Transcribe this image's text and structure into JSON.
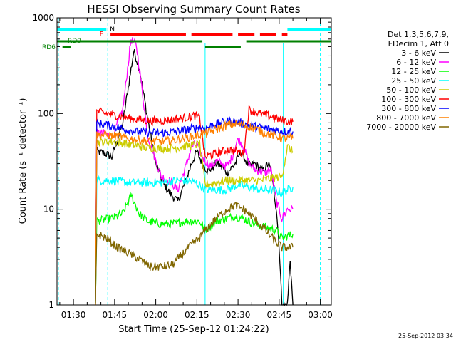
{
  "chart_data": {
    "type": "line",
    "title": "HESSI Observing Summary Count Rates",
    "xlabel": "Start Time (25-Sep-12 01:24:22)",
    "ylabel": "Count Rate (s⁻¹ detector⁻¹)",
    "ylog": true,
    "ylim": [
      1,
      1000
    ],
    "xlim_minutes": [
      0,
      100
    ],
    "x_ticks": [
      {
        "t": 6,
        "label": "01:30"
      },
      {
        "t": 21,
        "label": "01:45"
      },
      {
        "t": 36,
        "label": "02:00"
      },
      {
        "t": 51,
        "label": "02:15"
      },
      {
        "t": 66,
        "label": "02:30"
      },
      {
        "t": 81,
        "label": "02:45"
      },
      {
        "t": 96,
        "label": "03:00"
      }
    ],
    "y_ticks": [
      {
        "v": 1,
        "label": "1"
      },
      {
        "v": 10,
        "label": "10"
      },
      {
        "v": 100,
        "label": "100"
      },
      {
        "v": 1000,
        "label": "1000"
      }
    ],
    "legend_header": [
      "Det 1,3,5,6,7,9,",
      "FDecim 1, Att 0"
    ],
    "legend_position": "right",
    "date_stamp": "25-Sep-2012 03:34",
    "night_intervals": [
      [
        0,
        18
      ],
      [
        84,
        100
      ]
    ],
    "night_label": "N",
    "flare_segments": [
      [
        19.5,
        47
      ],
      [
        49,
        64
      ],
      [
        66,
        72
      ],
      [
        74,
        80
      ],
      [
        82,
        84
      ]
    ],
    "flare_label": "F",
    "rd0_segments": [
      [
        0,
        53
      ],
      [
        69,
        100
      ]
    ],
    "rd0_label": "RD0",
    "rd6_segments": [
      [
        2,
        5
      ],
      [
        54,
        67
      ]
    ],
    "rd6_label": "RD6",
    "dashed_verticals": [
      0.5,
      18.5,
      96
    ],
    "solid_verticals": [
      54,
      82.5
    ],
    "series": [
      {
        "name": "3 - 6 keV",
        "color": "#000000",
        "points": [
          [
            14,
            1
          ],
          [
            14.5,
            40
          ],
          [
            18,
            38
          ],
          [
            20,
            35
          ],
          [
            24,
            80
          ],
          [
            28,
            450
          ],
          [
            30,
            300
          ],
          [
            33,
            90
          ],
          [
            36,
            30
          ],
          [
            39,
            18
          ],
          [
            41,
            15
          ],
          [
            44,
            12
          ],
          [
            47,
            20
          ],
          [
            49,
            30
          ],
          [
            51,
            40
          ],
          [
            53,
            30
          ],
          [
            55,
            25
          ],
          [
            58,
            30
          ],
          [
            60,
            28
          ],
          [
            62,
            24
          ],
          [
            65,
            30
          ],
          [
            67,
            40
          ],
          [
            70,
            28
          ],
          [
            72,
            30
          ],
          [
            75,
            25
          ],
          [
            77,
            30
          ],
          [
            78,
            25
          ],
          [
            80,
            10
          ],
          [
            81,
            4
          ],
          [
            82,
            1
          ],
          [
            84,
            1
          ],
          [
            85,
            3
          ],
          [
            86,
            1
          ]
        ]
      },
      {
        "name": "6 - 12 keV",
        "color": "#ff00ff",
        "points": [
          [
            14,
            2
          ],
          [
            14.5,
            62
          ],
          [
            18,
            62
          ],
          [
            20,
            55
          ],
          [
            24,
            110
          ],
          [
            27,
            600
          ],
          [
            29,
            500
          ],
          [
            31,
            180
          ],
          [
            33,
            60
          ],
          [
            36,
            32
          ],
          [
            38,
            22
          ],
          [
            41,
            20
          ],
          [
            44,
            16
          ],
          [
            47,
            28
          ],
          [
            49,
            45
          ],
          [
            51,
            48
          ],
          [
            52,
            40
          ],
          [
            54,
            32
          ],
          [
            56,
            28
          ],
          [
            58,
            32
          ],
          [
            60,
            30
          ],
          [
            62,
            28
          ],
          [
            64,
            36
          ],
          [
            66,
            55
          ],
          [
            68,
            45
          ],
          [
            70,
            30
          ],
          [
            72,
            26
          ],
          [
            74,
            25
          ],
          [
            76,
            24
          ],
          [
            78,
            26
          ],
          [
            80,
            12
          ],
          [
            82,
            8
          ],
          [
            84,
            10
          ],
          [
            86,
            10
          ]
        ]
      },
      {
        "name": "12 - 25 keV",
        "color": "#00ff00",
        "points": [
          [
            14,
            1
          ],
          [
            14.5,
            7.5
          ],
          [
            20,
            8
          ],
          [
            24,
            9
          ],
          [
            27,
            14
          ],
          [
            30,
            9
          ],
          [
            33,
            7.5
          ],
          [
            38,
            7
          ],
          [
            42,
            7
          ],
          [
            47,
            7.5
          ],
          [
            52,
            7.5
          ],
          [
            54,
            6
          ],
          [
            58,
            7.5
          ],
          [
            62,
            8
          ],
          [
            65,
            8.5
          ],
          [
            68,
            8
          ],
          [
            72,
            7
          ],
          [
            76,
            6.5
          ],
          [
            80,
            6
          ],
          [
            82,
            5
          ],
          [
            86,
            5.5
          ]
        ]
      },
      {
        "name": "25 - 50 keV",
        "color": "#00ffff",
        "points": [
          [
            14,
            1
          ],
          [
            14.5,
            20
          ],
          [
            20,
            20
          ],
          [
            26,
            19
          ],
          [
            32,
            19
          ],
          [
            38,
            19
          ],
          [
            44,
            20
          ],
          [
            48,
            20
          ],
          [
            52,
            18
          ],
          [
            54,
            16
          ],
          [
            58,
            16
          ],
          [
            62,
            16
          ],
          [
            66,
            18
          ],
          [
            70,
            17
          ],
          [
            74,
            16
          ],
          [
            78,
            16
          ],
          [
            82,
            15
          ],
          [
            86,
            17
          ]
        ]
      },
      {
        "name": "50 - 100 keV",
        "color": "#cccc00",
        "points": [
          [
            14,
            1
          ],
          [
            14.5,
            50
          ],
          [
            20,
            51
          ],
          [
            26,
            48
          ],
          [
            32,
            44
          ],
          [
            38,
            43
          ],
          [
            44,
            44
          ],
          [
            48,
            46
          ],
          [
            52,
            48
          ],
          [
            54,
            18
          ],
          [
            58,
            19
          ],
          [
            62,
            20
          ],
          [
            66,
            20
          ],
          [
            70,
            20
          ],
          [
            74,
            20
          ],
          [
            78,
            21
          ],
          [
            82,
            22
          ],
          [
            84,
            45
          ],
          [
            86,
            40
          ]
        ]
      },
      {
        "name": "100 - 300 keV",
        "color": "#ff0000",
        "points": [
          [
            14,
            1
          ],
          [
            14.5,
            105
          ],
          [
            18,
            100
          ],
          [
            22,
            95
          ],
          [
            26,
            90
          ],
          [
            30,
            86
          ],
          [
            34,
            84
          ],
          [
            38,
            84
          ],
          [
            42,
            86
          ],
          [
            46,
            90
          ],
          [
            50,
            95
          ],
          [
            52,
            90
          ],
          [
            54,
            35
          ],
          [
            56,
            37
          ],
          [
            60,
            40
          ],
          [
            63,
            42
          ],
          [
            66,
            40
          ],
          [
            68,
            38
          ],
          [
            70,
            110
          ],
          [
            74,
            100
          ],
          [
            78,
            93
          ],
          [
            82,
            85
          ],
          [
            86,
            82
          ]
        ]
      },
      {
        "name": "300 - 800 keV",
        "color": "#0000ff",
        "points": [
          [
            14,
            1
          ],
          [
            14.5,
            78
          ],
          [
            18,
            76
          ],
          [
            22,
            72
          ],
          [
            26,
            67
          ],
          [
            30,
            64
          ],
          [
            34,
            63
          ],
          [
            38,
            63
          ],
          [
            42,
            64
          ],
          [
            46,
            67
          ],
          [
            50,
            70
          ],
          [
            52,
            72
          ],
          [
            54,
            70
          ],
          [
            58,
            78
          ],
          [
            62,
            83
          ],
          [
            65,
            82
          ],
          [
            68,
            78
          ],
          [
            72,
            73
          ],
          [
            76,
            70
          ],
          [
            80,
            67
          ],
          [
            82,
            65
          ],
          [
            86,
            65
          ]
        ]
      },
      {
        "name": "800 - 7000 keV",
        "color": "#ff8000",
        "points": [
          [
            14,
            1
          ],
          [
            14.5,
            60
          ],
          [
            18,
            60
          ],
          [
            22,
            58
          ],
          [
            26,
            55
          ],
          [
            30,
            53
          ],
          [
            34,
            51
          ],
          [
            38,
            51
          ],
          [
            42,
            52
          ],
          [
            46,
            55
          ],
          [
            50,
            58
          ],
          [
            52,
            60
          ],
          [
            54,
            62
          ],
          [
            58,
            68
          ],
          [
            62,
            76
          ],
          [
            65,
            78
          ],
          [
            68,
            76
          ],
          [
            72,
            70
          ],
          [
            76,
            62
          ],
          [
            80,
            58
          ],
          [
            82,
            55
          ],
          [
            86,
            55
          ]
        ]
      },
      {
        "name": "7000 - 20000 keV",
        "color": "#806600",
        "points": [
          [
            14,
            1
          ],
          [
            14.5,
            5.5
          ],
          [
            18,
            5
          ],
          [
            22,
            4
          ],
          [
            26,
            3.5
          ],
          [
            30,
            3
          ],
          [
            34,
            2.5
          ],
          [
            38,
            2.5
          ],
          [
            42,
            2.6
          ],
          [
            44,
            3
          ],
          [
            48,
            4
          ],
          [
            52,
            5
          ],
          [
            54,
            6
          ],
          [
            58,
            8
          ],
          [
            62,
            10
          ],
          [
            65,
            11
          ],
          [
            68,
            10
          ],
          [
            72,
            8
          ],
          [
            76,
            6
          ],
          [
            80,
            4.5
          ],
          [
            82,
            4
          ],
          [
            86,
            4
          ]
        ]
      }
    ]
  }
}
